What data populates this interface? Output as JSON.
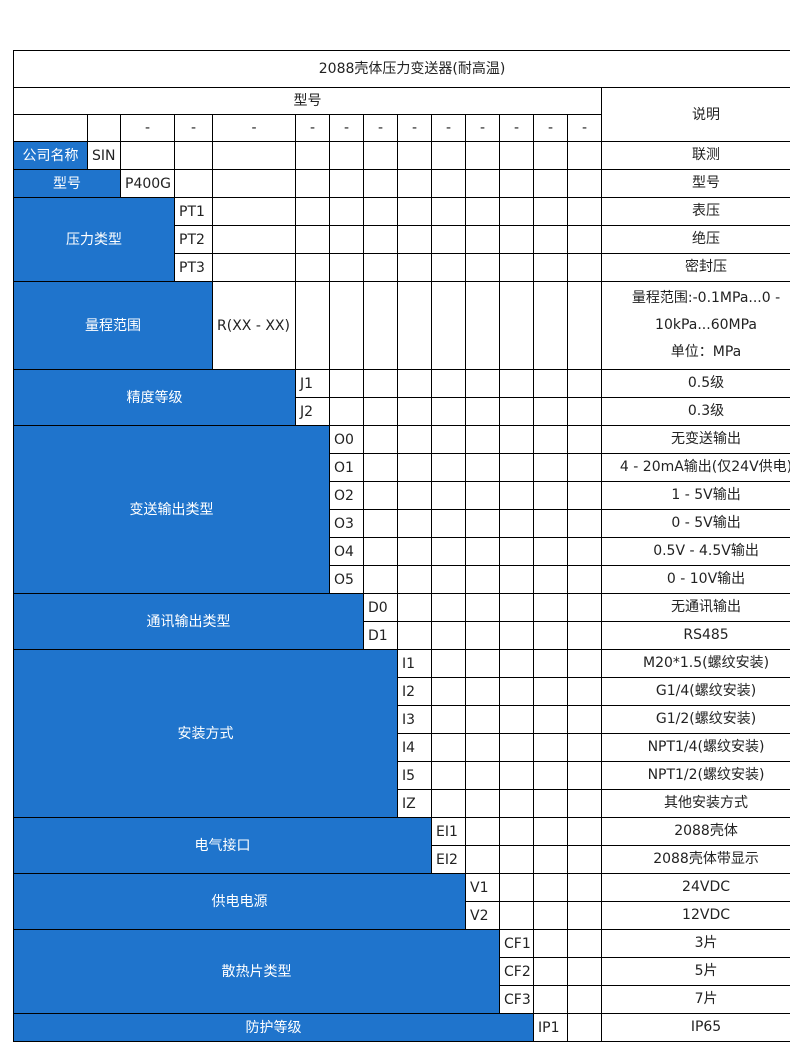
{
  "title": "2088壳体压力变送器(耐高温)",
  "header": {
    "model_label": "型号",
    "desc_label": "说明",
    "dashes": [
      "",
      "",
      "-",
      "-",
      "-",
      "-",
      "-",
      "-",
      "-",
      "-",
      "-",
      "-",
      "-",
      "-"
    ]
  },
  "colors": {
    "label_bg": "#1f74cc",
    "label_text": "#ffffff",
    "border": "#000000"
  },
  "sections": [
    {
      "label": "公司名称",
      "code_col": 1,
      "rows": [
        {
          "code": "SIN",
          "desc": [
            "联测"
          ]
        }
      ]
    },
    {
      "label": "型号",
      "code_col": 2,
      "rows": [
        {
          "code": "P400G",
          "desc": [
            "型号"
          ]
        }
      ]
    },
    {
      "label": "压力类型",
      "code_col": 3,
      "rows": [
        {
          "code": "PT1",
          "desc": [
            "表压"
          ]
        },
        {
          "code": "PT2",
          "desc": [
            "绝压"
          ]
        },
        {
          "code": "PT3",
          "desc": [
            "密封压"
          ]
        }
      ]
    },
    {
      "label": "量程范围",
      "code_col": 4,
      "rows": [
        {
          "code": "R(XX - XX)",
          "desc": [
            "量程范围:-0.1MPa...0 -",
            "10kPa...60MPa",
            "单位：MPa"
          ]
        }
      ]
    },
    {
      "label": "精度等级",
      "code_col": 5,
      "rows": [
        {
          "code": "J1",
          "desc": [
            "0.5级"
          ]
        },
        {
          "code": "J2",
          "desc": [
            "0.3级"
          ]
        }
      ]
    },
    {
      "label": "变送输出类型",
      "code_col": 6,
      "rows": [
        {
          "code": "O0",
          "desc": [
            "无变送输出"
          ]
        },
        {
          "code": "O1",
          "desc": [
            "4 - 20mA输出(仅24V供电)"
          ]
        },
        {
          "code": "O2",
          "desc": [
            "1 - 5V输出"
          ]
        },
        {
          "code": "O3",
          "desc": [
            "0 - 5V输出"
          ]
        },
        {
          "code": "O4",
          "desc": [
            "0.5V - 4.5V输出"
          ]
        },
        {
          "code": "O5",
          "desc": [
            "0 - 10V输出"
          ]
        }
      ]
    },
    {
      "label": "通讯输出类型",
      "code_col": 7,
      "rows": [
        {
          "code": "D0",
          "desc": [
            "无通讯输出"
          ]
        },
        {
          "code": "D1",
          "desc": [
            "RS485"
          ]
        }
      ]
    },
    {
      "label": "安装方式",
      "code_col": 8,
      "rows": [
        {
          "code": "I1",
          "desc": [
            "M20*1.5(螺纹安装)"
          ]
        },
        {
          "code": "I2",
          "desc": [
            "G1/4(螺纹安装)"
          ]
        },
        {
          "code": "I3",
          "desc": [
            "G1/2(螺纹安装)"
          ]
        },
        {
          "code": "I4",
          "desc": [
            "NPT1/4(螺纹安装)"
          ]
        },
        {
          "code": "I5",
          "desc": [
            "NPT1/2(螺纹安装)"
          ]
        },
        {
          "code": "IZ",
          "desc": [
            "其他安装方式"
          ]
        }
      ]
    },
    {
      "label": "电气接口",
      "code_col": 9,
      "rows": [
        {
          "code": "EI1",
          "desc": [
            "2088壳体"
          ]
        },
        {
          "code": "EI2",
          "desc": [
            "2088壳体带显示"
          ]
        }
      ]
    },
    {
      "label": "供电电源",
      "code_col": 10,
      "rows": [
        {
          "code": "V1",
          "desc": [
            "24VDC"
          ]
        },
        {
          "code": "V2",
          "desc": [
            "12VDC"
          ]
        }
      ]
    },
    {
      "label": "散热片类型",
      "code_col": 11,
      "rows": [
        {
          "code": "CF1",
          "desc": [
            "3片"
          ]
        },
        {
          "code": "CF2",
          "desc": [
            "5片"
          ]
        },
        {
          "code": "CF3",
          "desc": [
            "7片"
          ]
        }
      ]
    },
    {
      "label": "防护等级",
      "code_col": 12,
      "rows": [
        {
          "code": "IP1",
          "desc": [
            "IP65"
          ]
        }
      ]
    }
  ]
}
